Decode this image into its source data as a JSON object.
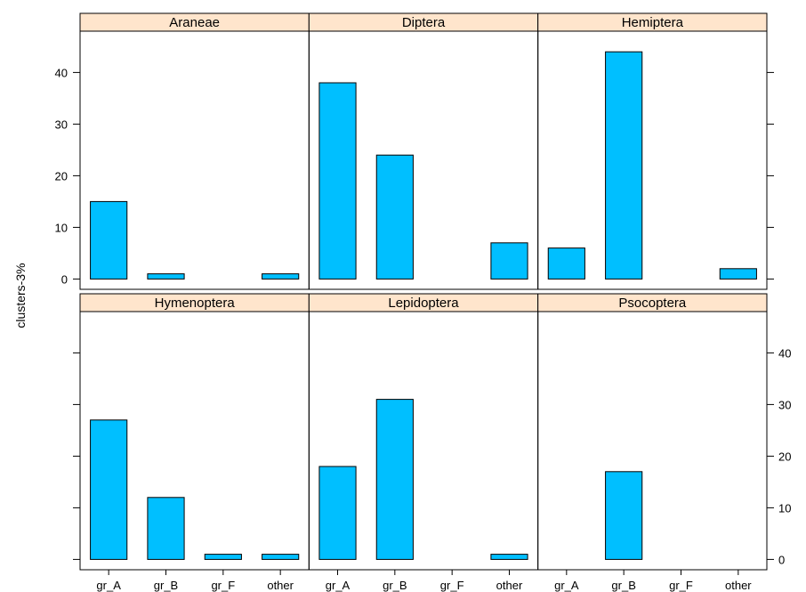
{
  "chart_data": {
    "type": "bar",
    "layout": "lattice-2x3",
    "ylabel": "clusters-3%",
    "xlabel": "",
    "title": "",
    "ylim": [
      -2,
      48
    ],
    "y_ticks": [
      0,
      10,
      20,
      30,
      40
    ],
    "categories": [
      "gr_A",
      "gr_B",
      "gr_F",
      "other"
    ],
    "bar_color": "#00bfff",
    "strip_color": "#ffe5cc",
    "panels": [
      {
        "name": "Araneae",
        "values": [
          15,
          1,
          0,
          1
        ]
      },
      {
        "name": "Diptera",
        "values": [
          38,
          24,
          0,
          7
        ]
      },
      {
        "name": "Hemiptera",
        "values": [
          6,
          44,
          0,
          2
        ]
      },
      {
        "name": "Hymenoptera",
        "values": [
          27,
          12,
          1,
          1
        ]
      },
      {
        "name": "Lepidoptera",
        "values": [
          18,
          31,
          0,
          1
        ]
      },
      {
        "name": "Psocoptera",
        "values": [
          0,
          17,
          0,
          0
        ]
      }
    ]
  }
}
